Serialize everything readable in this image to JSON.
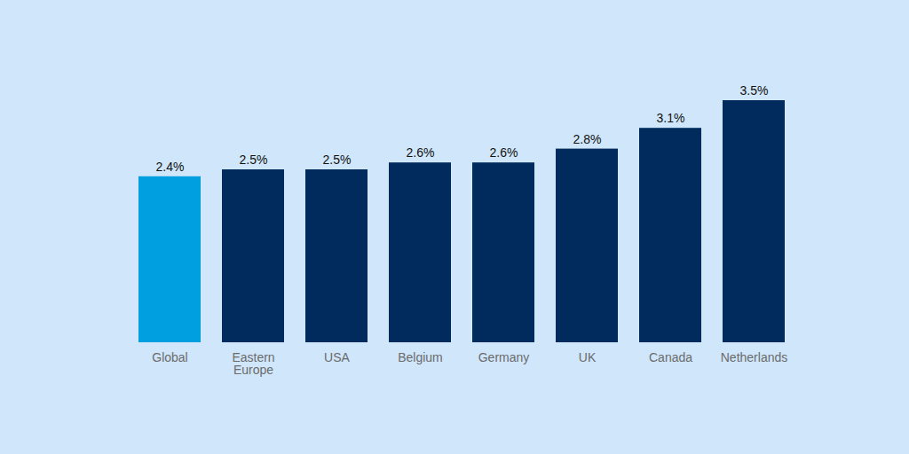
{
  "chart_data": {
    "type": "bar",
    "categories": [
      "Global",
      "Eastern Europe",
      "USA",
      "Belgium",
      "Germany",
      "UK",
      "Canada",
      "Netherlands"
    ],
    "values": [
      2.4,
      2.5,
      2.5,
      2.6,
      2.6,
      2.8,
      3.1,
      3.5
    ],
    "value_labels": [
      "2.4%",
      "2.5%",
      "2.5%",
      "2.6%",
      "2.6%",
      "2.8%",
      "3.1%",
      "3.5%"
    ],
    "colors": [
      "#00a0e0",
      "#002b5c",
      "#002b5c",
      "#002b5c",
      "#002b5c",
      "#002b5c",
      "#002b5c",
      "#002b5c"
    ],
    "ylim": [
      0,
      3.5
    ],
    "data_labels": true,
    "tick_labels": "x",
    "grid": false
  }
}
